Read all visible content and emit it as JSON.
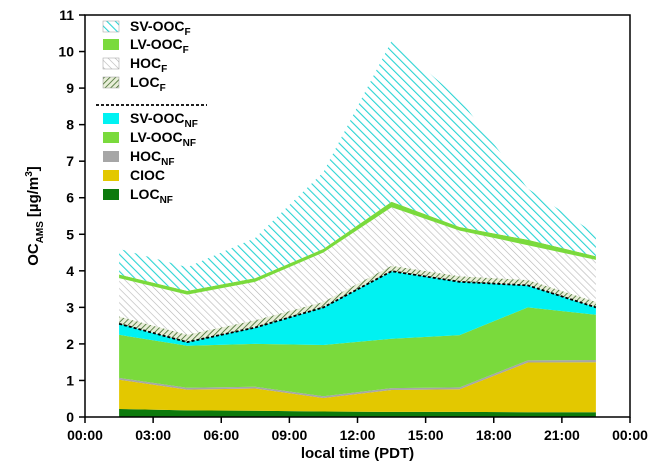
{
  "chart_data": {
    "type": "area",
    "stacked": true,
    "xlabel": "local time (PDT)",
    "ylabel": "OC",
    "ylabel_sub": "AMS",
    "ylabel_unit": "[µg/m",
    "ylabel_unit_sup": "3",
    "ylabel_unit_close": "]",
    "xlim": [
      0,
      24
    ],
    "ylim": [
      0,
      11
    ],
    "x_ticks": [
      0,
      3,
      6,
      9,
      12,
      15,
      18,
      21,
      24
    ],
    "x_tick_labels": [
      "00:00",
      "03:00",
      "06:00",
      "09:00",
      "12:00",
      "15:00",
      "18:00",
      "21:00",
      "00:00"
    ],
    "y_ticks": [
      0,
      1,
      2,
      3,
      4,
      5,
      6,
      7,
      8,
      9,
      10,
      11
    ],
    "y_tick_labels": [
      "0",
      "1",
      "2",
      "3",
      "4",
      "5",
      "6",
      "7",
      "8",
      "9",
      "10",
      "11"
    ],
    "x": [
      1.5,
      4.5,
      7.5,
      10.5,
      13.5,
      16.5,
      19.5,
      22.5
    ],
    "series": [
      {
        "name": "LOC",
        "sub": "NF",
        "values": [
          0.22,
          0.18,
          0.17,
          0.15,
          0.14,
          0.14,
          0.13,
          0.13
        ],
        "fill": "#0d7a0d",
        "pattern": "solid"
      },
      {
        "name": "CIOC",
        "sub": "",
        "values": [
          0.8,
          0.57,
          0.61,
          0.37,
          0.6,
          0.62,
          1.36,
          1.37
        ],
        "fill": "#e3c800",
        "pattern": "solid"
      },
      {
        "name": "HOC",
        "sub": "NF",
        "values": [
          0.05,
          0.05,
          0.05,
          0.05,
          0.05,
          0.05,
          0.06,
          0.06
        ],
        "fill": "#a6a6a6",
        "pattern": "solid"
      },
      {
        "name": "LV-OOC",
        "sub": "NF",
        "values": [
          1.18,
          1.15,
          1.17,
          1.4,
          1.35,
          1.43,
          1.45,
          1.24
        ],
        "fill": "#7ada3c",
        "pattern": "solid"
      },
      {
        "name": "SV-OOC",
        "sub": "NF",
        "values": [
          0.3,
          0.1,
          0.45,
          1.03,
          1.85,
          1.46,
          0.6,
          0.2
        ],
        "fill": "#00f2f2",
        "pattern": "solid"
      },
      {
        "name": "LOC",
        "sub": "F",
        "values": [
          0.2,
          0.2,
          0.2,
          0.15,
          0.15,
          0.15,
          0.15,
          0.15
        ],
        "fill": "#557a3c",
        "pattern": "cross"
      },
      {
        "name": "HOC",
        "sub": "F",
        "values": [
          1.05,
          1.1,
          1.05,
          1.35,
          1.6,
          1.25,
          0.95,
          1.15
        ],
        "fill": "#b8b8b8",
        "pattern": "diag"
      },
      {
        "name": "LV-OOC",
        "sub": "F",
        "values": [
          0.1,
          0.1,
          0.1,
          0.1,
          0.15,
          0.1,
          0.15,
          0.1
        ],
        "fill": "#7ada3c",
        "pattern": "solid"
      },
      {
        "name": "SV-OOC",
        "sub": "F",
        "values": [
          0.7,
          0.65,
          1.1,
          2.1,
          4.4,
          3.5,
          1.4,
          0.6
        ],
        "fill": "#2ad4d4",
        "pattern": "diag"
      }
    ],
    "legend": {
      "placement": "top-left",
      "groups": [
        [
          {
            "name": "SV-OOC",
            "sub": "F"
          },
          {
            "name": "LV-OOC",
            "sub": "F"
          },
          {
            "name": "HOC",
            "sub": "F"
          },
          {
            "name": "LOC",
            "sub": "F"
          }
        ],
        [
          {
            "name": "SV-OOC",
            "sub": "NF"
          },
          {
            "name": "LV-OOC",
            "sub": "NF"
          },
          {
            "name": "HOC",
            "sub": "NF"
          },
          {
            "name": "CIOC",
            "sub": ""
          },
          {
            "name": "LOC",
            "sub": "NF"
          }
        ]
      ]
    },
    "dashed_boundary_after_series": 5,
    "grid": false
  }
}
